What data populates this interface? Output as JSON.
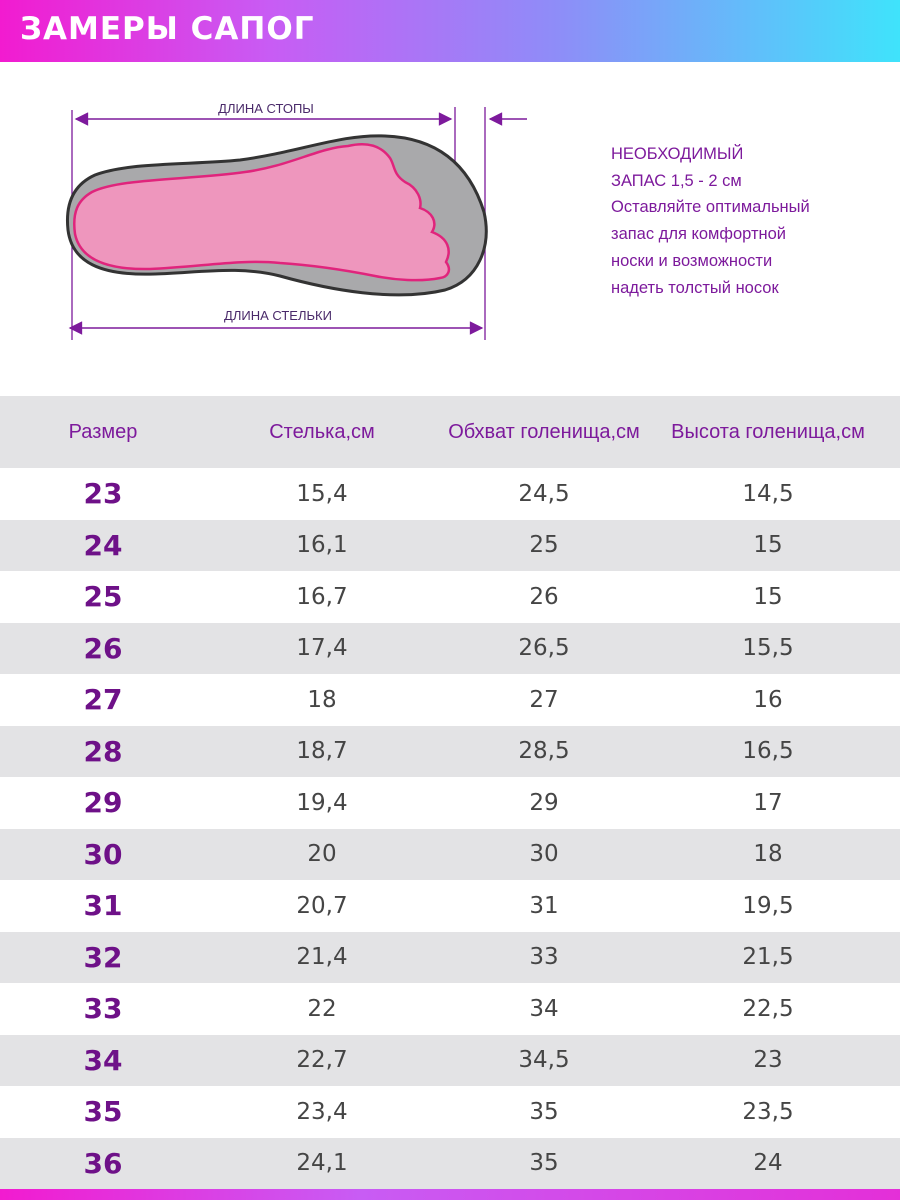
{
  "header": {
    "title": "ЗАМЕРЫ САПОГ"
  },
  "diagram": {
    "foot_length_label": "ДЛИНА СТОПЫ",
    "insole_length_label": "ДЛИНА СТЕЛЬКИ",
    "colors": {
      "outline": "#7d1a9c",
      "sole": "#a9a9ab",
      "foot_fill": "#ee96bd",
      "foot_stroke": "#e0247c"
    }
  },
  "note": {
    "lines": [
      "НЕОБХОДИМЫЙ",
      "ЗАПАС 1,5 - 2 см",
      "Оставляйте оптимальный",
      "запас для комфортной",
      "носки и возможности",
      "надеть толстый носок"
    ]
  },
  "table": {
    "headers": [
      "Размер",
      "Стелька,см",
      "Обхват голенища,см",
      "Высота голенища,см"
    ],
    "rows": [
      [
        "23",
        "15,4",
        "24,5",
        "14,5"
      ],
      [
        "24",
        "16,1",
        "25",
        "15"
      ],
      [
        "25",
        "16,7",
        "26",
        "15"
      ],
      [
        "26",
        "17,4",
        "26,5",
        "15,5"
      ],
      [
        "27",
        "18",
        "27",
        "16"
      ],
      [
        "28",
        "18,7",
        "28,5",
        "16,5"
      ],
      [
        "29",
        "19,4",
        "29",
        "17"
      ],
      [
        "30",
        "20",
        "30",
        "18"
      ],
      [
        "31",
        "20,7",
        "31",
        "19,5"
      ],
      [
        "32",
        "21,4",
        "33",
        "21,5"
      ],
      [
        "33",
        "22",
        "34",
        "22,5"
      ],
      [
        "34",
        "22,7",
        "34,5",
        "23"
      ],
      [
        "35",
        "23,4",
        "35",
        "23,5"
      ],
      [
        "36",
        "24,1",
        "35",
        "24"
      ]
    ]
  },
  "colors": {
    "accent": "#7d1a9c",
    "row_alt": "#e3e3e5",
    "header_gradient_start": "#f21bd0",
    "header_gradient_end": "#3fe3fb"
  }
}
